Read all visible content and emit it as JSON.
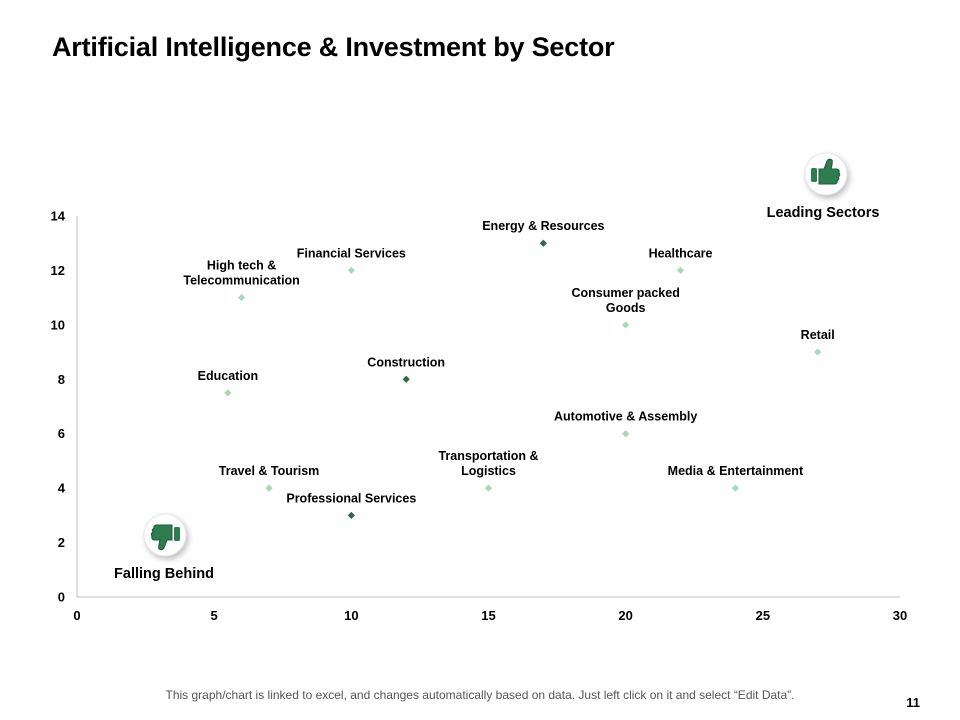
{
  "title": "Artificial Intelligence & Investment by Sector",
  "footnote": "This graph/chart is linked to excel,  and changes automatically based on data. Just left click on it and select “Edit Data”.",
  "page_number": "11",
  "colors": {
    "light_marker": "#a8d8b9",
    "dark_marker": "#2e6b45",
    "icon_green": "#2e7d4f",
    "axis": "#bfbfbf"
  },
  "badges": {
    "leading": {
      "label": "Leading Sectors",
      "icon": "thumbs-up-icon"
    },
    "falling": {
      "label": "Falling Behind",
      "icon": "thumbs-down-icon"
    }
  },
  "chart_data": {
    "type": "scatter",
    "title": "",
    "xlabel": "",
    "ylabel": "",
    "xlim": [
      0,
      30
    ],
    "ylim": [
      0,
      14
    ],
    "xticks": [
      0,
      5,
      10,
      15,
      20,
      25,
      30
    ],
    "yticks": [
      0,
      2,
      4,
      6,
      8,
      10,
      12,
      14
    ],
    "grid": false,
    "points": [
      {
        "name": "Energy & Resources",
        "lines": [
          "Energy & Resources"
        ],
        "x": 17,
        "y": 13,
        "shade": "dark",
        "label_pos": "above"
      },
      {
        "name": "Financial Services",
        "lines": [
          "Financial Services"
        ],
        "x": 10,
        "y": 12,
        "shade": "light",
        "label_pos": "above"
      },
      {
        "name": "Healthcare",
        "lines": [
          "Healthcare"
        ],
        "x": 22,
        "y": 12,
        "shade": "light",
        "label_pos": "above"
      },
      {
        "name": "High tech & Telecommunication",
        "lines": [
          "High tech &",
          "Telecommunication"
        ],
        "x": 6,
        "y": 11,
        "shade": "light",
        "label_pos": "above"
      },
      {
        "name": "Consumer packed Goods",
        "lines": [
          "Consumer packed",
          "Goods"
        ],
        "x": 20,
        "y": 10,
        "shade": "light",
        "label_pos": "above"
      },
      {
        "name": "Retail",
        "lines": [
          "Retail"
        ],
        "x": 27,
        "y": 9,
        "shade": "light",
        "label_pos": "above"
      },
      {
        "name": "Construction",
        "lines": [
          "Construction"
        ],
        "x": 12,
        "y": 8,
        "shade": "dark",
        "label_pos": "above"
      },
      {
        "name": "Education",
        "lines": [
          "Education"
        ],
        "x": 5.5,
        "y": 7.5,
        "shade": "light",
        "label_pos": "above"
      },
      {
        "name": "Automotive & Assembly",
        "lines": [
          "Automotive & Assembly"
        ],
        "x": 20,
        "y": 6,
        "shade": "light",
        "label_pos": "above"
      },
      {
        "name": "Travel & Tourism",
        "lines": [
          "Travel & Tourism"
        ],
        "x": 7,
        "y": 4,
        "shade": "light",
        "label_pos": "above"
      },
      {
        "name": "Transportation & Logistics",
        "lines": [
          "Transportation &",
          "Logistics"
        ],
        "x": 15,
        "y": 4,
        "shade": "light",
        "label_pos": "above"
      },
      {
        "name": "Media & Entertainment",
        "lines": [
          "Media & Entertainment"
        ],
        "x": 24,
        "y": 4,
        "shade": "light",
        "label_pos": "above"
      },
      {
        "name": "Professional Services",
        "lines": [
          "Professional Services"
        ],
        "x": 10,
        "y": 3,
        "shade": "dark",
        "label_pos": "above"
      }
    ]
  }
}
